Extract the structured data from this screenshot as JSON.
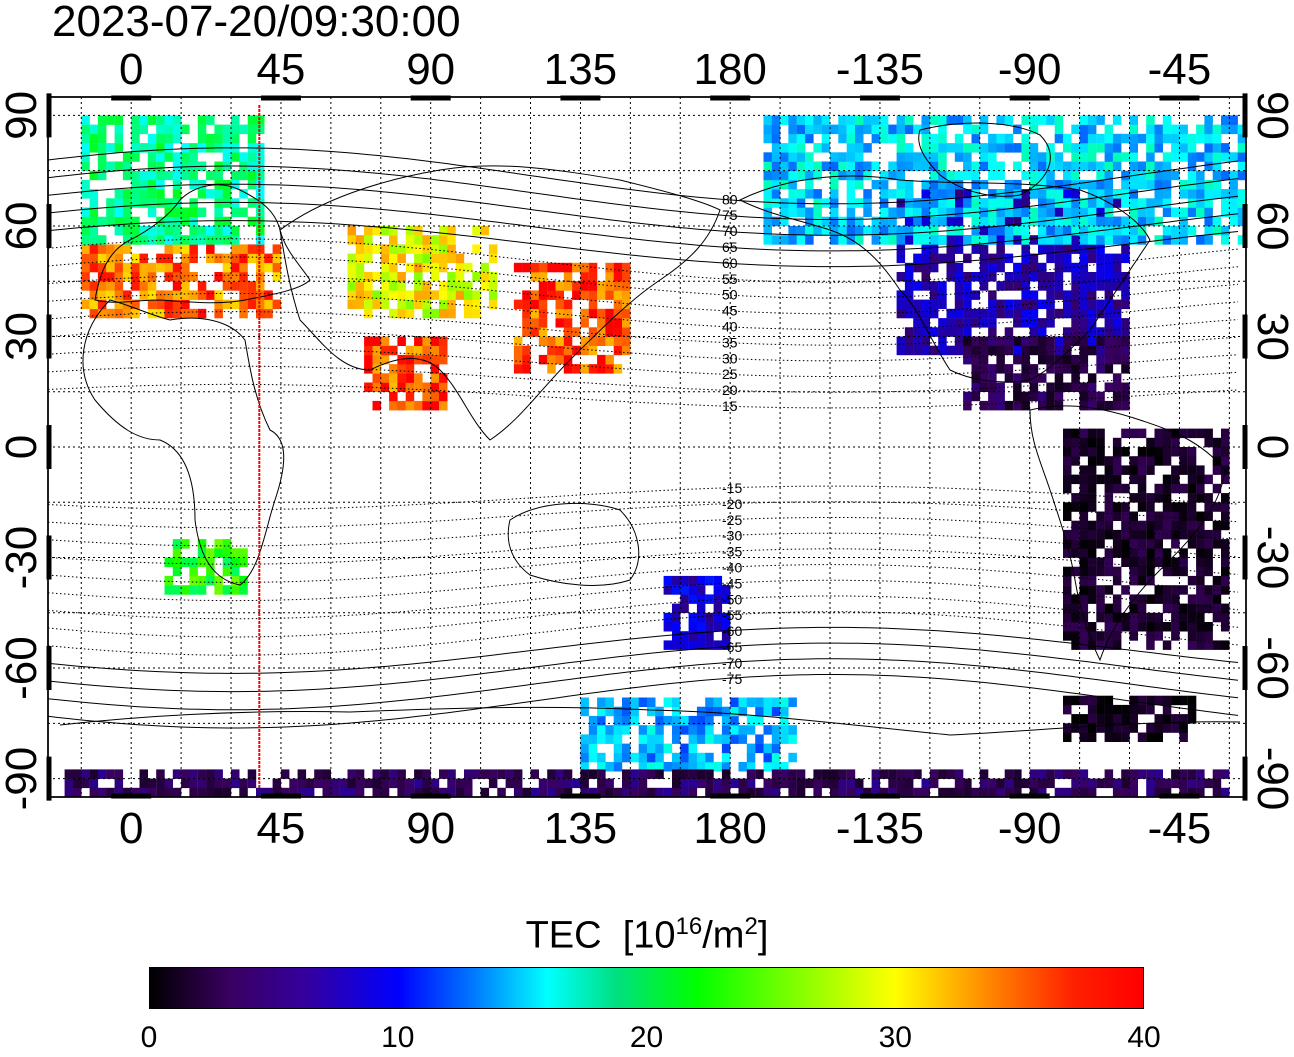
{
  "timestamp": "2023-07-20/09:30:00",
  "map": {
    "projection": "equirectangular",
    "lon_range": [
      -25,
      335
    ],
    "lat_range": [
      -95,
      95
    ],
    "lon_ticks": [
      0,
      45,
      90,
      135,
      180,
      225,
      270,
      315
    ],
    "lon_tick_labels": [
      "0",
      "45",
      "90",
      "135",
      "180",
      "-135",
      "-90",
      "-45"
    ],
    "lat_ticks": [
      90,
      60,
      30,
      0,
      -30,
      -60,
      -90
    ],
    "lat_tick_labels": [
      "90",
      "60",
      "30",
      "0",
      "-30",
      "-60",
      "-90"
    ],
    "grid_lon_step": 15,
    "grid_lat_step": 15,
    "marker_longitude": 38.5,
    "marker_color": "#ff0000",
    "magnetic_latitude_labels": [
      "80",
      "75",
      "70",
      "65",
      "60",
      "55",
      "50",
      "45",
      "40",
      "35",
      "30",
      "25",
      "20",
      "15",
      "-15",
      "-20",
      "-25",
      "-30",
      "-35",
      "-40",
      "-45",
      "-50",
      "-55",
      "-60",
      "-65",
      "-70",
      "-75"
    ]
  },
  "colorbar": {
    "title": "TEC",
    "unit_prefix": "[10",
    "unit_exp": "16",
    "unit_mid": "/m",
    "unit_exp2": "2",
    "unit_suffix": "]",
    "ticks": [
      "0",
      "10",
      "20",
      "30",
      "40"
    ],
    "range": [
      0,
      40
    ],
    "colors": [
      "#000000",
      "#3a0060",
      "#0000ff",
      "#00ffff",
      "#00ff00",
      "#ffff00",
      "#ff0000"
    ]
  },
  "tec_regions": [
    {
      "name": "europe",
      "lon": [
        -15,
        45
      ],
      "lat": [
        35,
        55
      ],
      "value": 37
    },
    {
      "name": "scandinavia",
      "lon": [
        -15,
        40
      ],
      "lat": [
        55,
        88
      ],
      "value": 23
    },
    {
      "name": "japan-china",
      "lon": [
        115,
        150
      ],
      "lat": [
        20,
        50
      ],
      "value": 38
    },
    {
      "name": "central-asia",
      "lon": [
        65,
        110
      ],
      "lat": [
        35,
        60
      ],
      "value": 33
    },
    {
      "name": "india",
      "lon": [
        70,
        95
      ],
      "lat": [
        10,
        30
      ],
      "value": 38
    },
    {
      "name": "north-america",
      "lon": [
        230,
        300
      ],
      "lat": [
        25,
        70
      ],
      "value": 10
    },
    {
      "name": "arctic-canada",
      "lon": [
        190,
        335
      ],
      "lat": [
        55,
        88
      ],
      "value": 19
    },
    {
      "name": "central-america",
      "lon": [
        250,
        300
      ],
      "lat": [
        10,
        30
      ],
      "value": 5
    },
    {
      "name": "south-america",
      "lon": [
        280,
        330
      ],
      "lat": [
        -55,
        5
      ],
      "value": 3
    },
    {
      "name": "antarctic-peninsula",
      "lon": [
        280,
        320
      ],
      "lat": [
        -80,
        -68
      ],
      "value": 2
    },
    {
      "name": "new-zealand",
      "lon": [
        160,
        180
      ],
      "lat": [
        -55,
        -35
      ],
      "value": 11
    },
    {
      "name": "antarctica-pacific",
      "lon": [
        135,
        200
      ],
      "lat": [
        -88,
        -70
      ],
      "value": 18
    },
    {
      "name": "south-africa",
      "lon": [
        10,
        35
      ],
      "lat": [
        -40,
        -25
      ],
      "value": 27
    },
    {
      "name": "antarctic-band",
      "lon": [
        -20,
        330
      ],
      "lat": [
        -95,
        -88
      ],
      "value": 6
    }
  ]
}
